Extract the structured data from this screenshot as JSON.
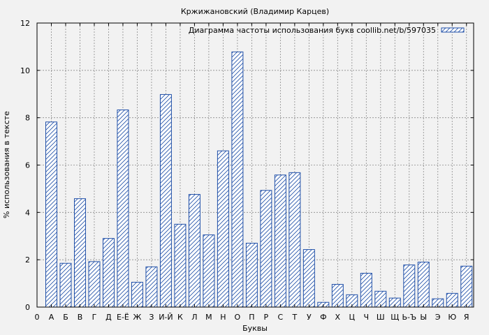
{
  "chart_data": {
    "type": "bar",
    "title": "Кржижановский (Владимир Карцев)",
    "xlabel": "Буквы",
    "ylabel": "% использования в тексте",
    "legend": {
      "label": "Диаграмма частоты использования букв coollib.net/b/597035",
      "position": "top-right"
    },
    "origin_label": "0",
    "ylim": [
      0,
      12
    ],
    "yticks": [
      0,
      2,
      4,
      6,
      8,
      10,
      12
    ],
    "grid": true,
    "bar_color": "#1f4fa8",
    "categories": [
      "А",
      "Б",
      "В",
      "Г",
      "Д",
      "Е-Ё",
      "Ж",
      "З",
      "И-Й",
      "К",
      "Л",
      "М",
      "Н",
      "О",
      "П",
      "Р",
      "С",
      "Т",
      "У",
      "Ф",
      "Х",
      "Ц",
      "Ч",
      "Ш",
      "Щ",
      "Ь-Ъ",
      "Ы",
      "Э",
      "Ю",
      "Я"
    ],
    "values": [
      7.82,
      1.85,
      4.58,
      1.92,
      2.9,
      8.33,
      1.05,
      1.7,
      8.98,
      3.5,
      4.76,
      3.05,
      6.6,
      10.78,
      2.7,
      4.93,
      5.58,
      5.68,
      2.43,
      0.2,
      0.96,
      0.52,
      1.43,
      0.67,
      0.38,
      1.78,
      1.9,
      0.35,
      0.58,
      1.73
    ]
  }
}
